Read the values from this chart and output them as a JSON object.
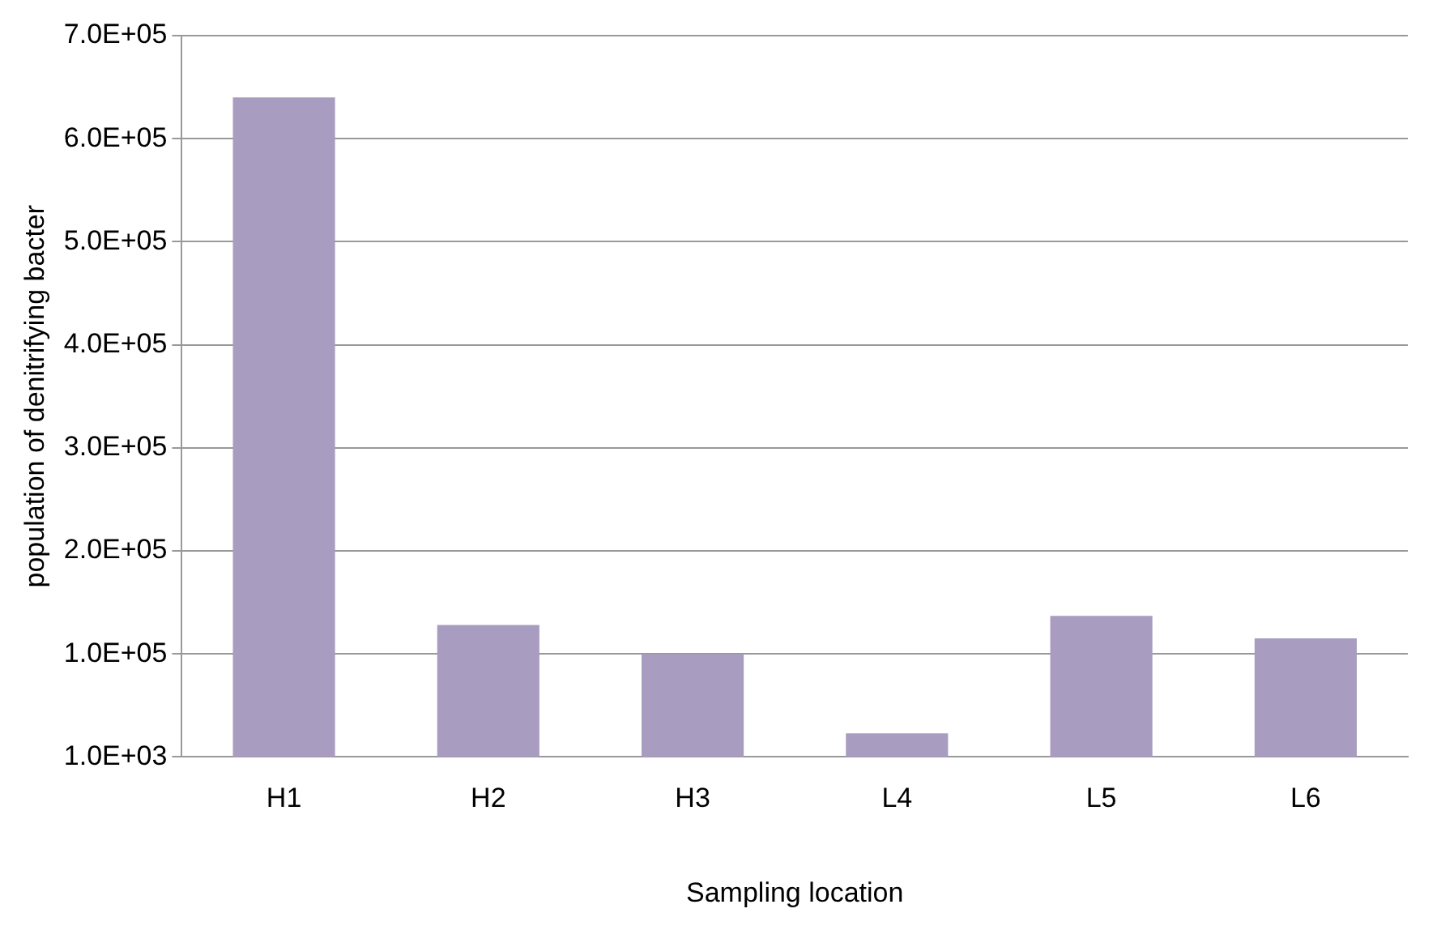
{
  "chart_data": {
    "type": "bar",
    "xlabel": "Sampling location",
    "ylabel": "population of denitrifying bacter",
    "categories": [
      "H1",
      "H2",
      "H3",
      "L4",
      "L5",
      "L6"
    ],
    "values": [
      641000,
      129000,
      101000,
      24000,
      138000,
      116000
    ],
    "color": "#a89cc0",
    "ylim": [
      1000,
      701000
    ],
    "yticks": [
      {
        "value": 1000,
        "label": "1.0E+03"
      },
      {
        "value": 101000,
        "label": "1.0E+05"
      },
      {
        "value": 201000,
        "label": "2.0E+05"
      },
      {
        "value": 301000,
        "label": "3.0E+05"
      },
      {
        "value": 401000,
        "label": "4.0E+05"
      },
      {
        "value": 501000,
        "label": "5.0E+05"
      },
      {
        "value": 601000,
        "label": "6.0E+05"
      },
      {
        "value": 701000,
        "label": "7.0E+05"
      }
    ],
    "grid": "y",
    "legend": false
  }
}
